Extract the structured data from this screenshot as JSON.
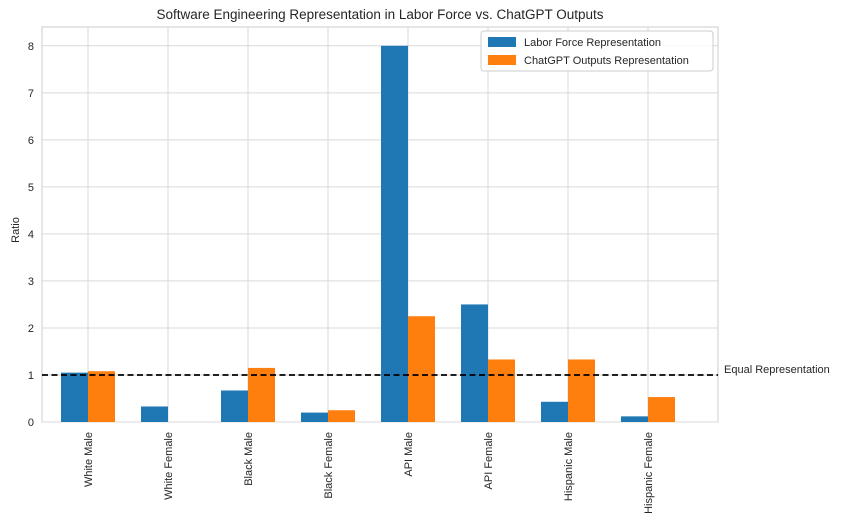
{
  "chart_data": {
    "type": "bar",
    "title": "Software Engineering Representation in Labor Force vs. ChatGPT Outputs",
    "xlabel": "",
    "ylabel": "Ratio",
    "ylim": [
      0,
      8.4
    ],
    "yticks": [
      0,
      1,
      2,
      3,
      4,
      5,
      6,
      7,
      8
    ],
    "grid": true,
    "legend_position": "top-right",
    "categories": [
      "White Male",
      "White Female",
      "Black Male",
      "Black Female",
      "API Male",
      "API Female",
      "Hispanic Male",
      "Hispanic Female"
    ],
    "series": [
      {
        "name": "Labor Force Representation",
        "color": "#1f77b4",
        "values": [
          1.05,
          0.33,
          0.67,
          0.2,
          8.0,
          2.5,
          0.43,
          0.12
        ]
      },
      {
        "name": "ChatGPT Outputs Representation",
        "color": "#ff7f0e",
        "values": [
          1.08,
          0.0,
          1.15,
          0.25,
          2.25,
          1.33,
          1.33,
          0.53
        ]
      }
    ],
    "reference_line": {
      "y": 1,
      "style": "dashed",
      "color": "#000000",
      "label": "Equal Representation"
    }
  }
}
